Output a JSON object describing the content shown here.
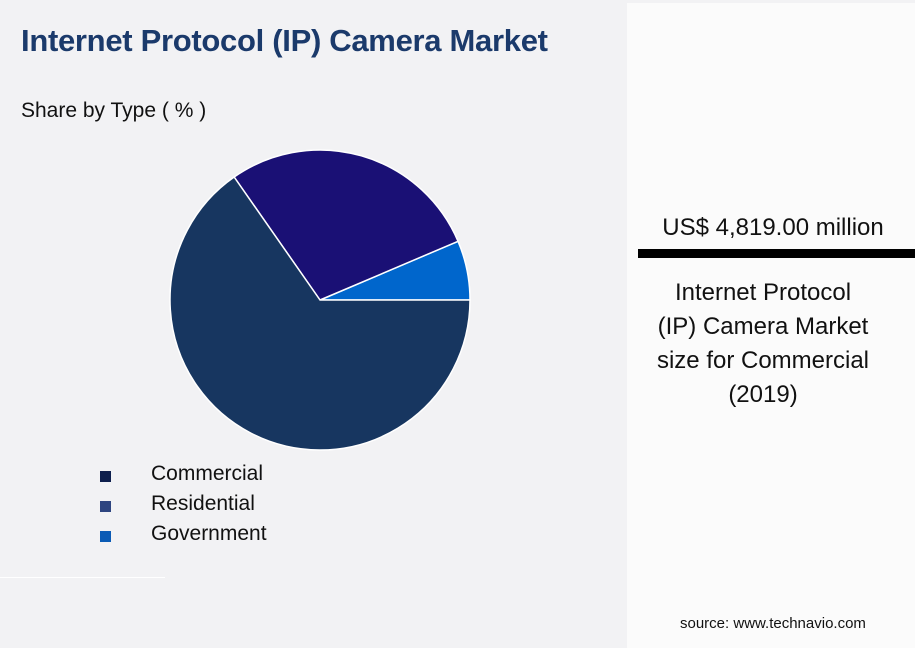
{
  "header": {
    "title": "Internet Protocol (IP) Camera Market",
    "subtitle": "Share by Type ( % )"
  },
  "legend": {
    "items": [
      {
        "label": "Commercial",
        "color": "#0e1f4d"
      },
      {
        "label": "Residential",
        "color": "#2e4580"
      },
      {
        "label": "Government",
        "color": "#0b5bb5"
      }
    ]
  },
  "side_panel": {
    "value": "US$ 4,819.00 million",
    "description": "Internet Protocol (IP) Camera Market size for Commercial (2019)",
    "description_lines": [
      "Internet Protocol",
      "(IP) Camera Market",
      "size for Commercial",
      "(2019)"
    ]
  },
  "footer": {
    "source": "source: www.technavio.com"
  },
  "colors": {
    "title": "#1b3a6b",
    "commercial_slice": "#173660",
    "residential_slice": "#1a1075",
    "government_slice": "#0066cc",
    "background": "#f2f2f4",
    "panel": "#fbfbfb"
  },
  "chart_data": {
    "type": "pie",
    "title": "Internet Protocol (IP) Camera Market",
    "subtitle": "Share by Type ( % )",
    "categories": [
      "Commercial",
      "Residential",
      "Government"
    ],
    "values": [
      65.3,
      28.3,
      6.4
    ],
    "colors": [
      "#173660",
      "#1a1075",
      "#0066cc"
    ],
    "legend_position": "bottom-left",
    "start_angle_deg": 0,
    "direction": "counterclockwise from 3 o'clock: Government, Residential, Commercial",
    "annotation": "US$ 4,819.00 million — Internet Protocol (IP) Camera Market size for Commercial (2019)"
  }
}
